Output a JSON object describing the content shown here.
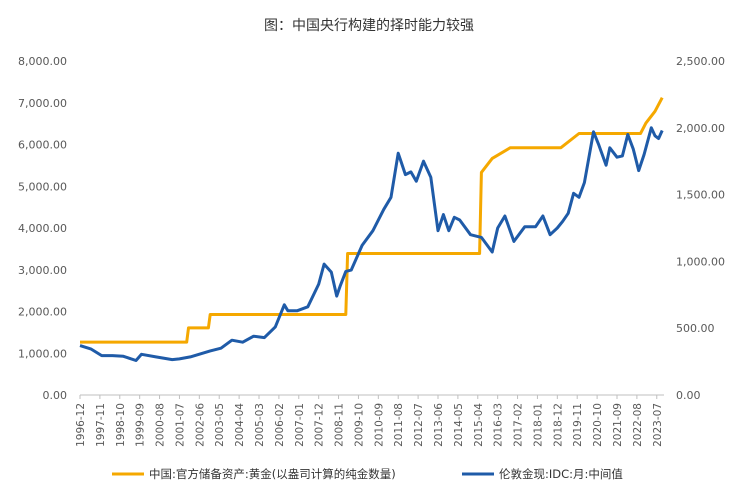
{
  "chart_data": {
    "type": "line",
    "title": "图：中国央行构建的择时能力较强",
    "x_labels": [
      "1996-12",
      "1997-11",
      "1998-10",
      "1999-09",
      "2000-08",
      "2001-07",
      "2002-06",
      "2003-05",
      "2004-04",
      "2005-03",
      "2006-02",
      "2007-01",
      "2007-12",
      "2008-11",
      "2009-10",
      "2010-09",
      "2011-08",
      "2012-07",
      "2013-06",
      "2014-05",
      "2015-04",
      "2016-03",
      "2017-02",
      "2018-01",
      "2018-12",
      "2019-11",
      "2020-10",
      "2021-09",
      "2022-08",
      "2023-07"
    ],
    "left_axis": {
      "ylim": [
        0,
        8000
      ],
      "ticks": [
        "0.00",
        "1,000.00",
        "2,000.00",
        "3,000.00",
        "4,000.00",
        "5,000.00",
        "6,000.00",
        "7,000.00",
        "8,000.00"
      ]
    },
    "right_axis": {
      "ylim": [
        0,
        2500
      ],
      "ticks": [
        "0.00",
        "500.00",
        "1,000.00",
        "1,500.00",
        "2,000.00",
        "2,500.00"
      ]
    },
    "grid": false,
    "legend_position": "bottom",
    "series": [
      {
        "name": "中国:官方储备资产:黄金(以盎司计算的纯金数量)",
        "axis": "left",
        "color": "#F5A800",
        "points": [
          [
            "1996-12",
            1267
          ],
          [
            "2001-11",
            1267
          ],
          [
            "2001-12",
            1608
          ],
          [
            "2002-11",
            1608
          ],
          [
            "2002-12",
            1929
          ],
          [
            "2009-03",
            1929
          ],
          [
            "2009-04",
            3389
          ],
          [
            "2015-05",
            3389
          ],
          [
            "2015-06",
            5332
          ],
          [
            "2015-12",
            5666
          ],
          [
            "2016-10",
            5924
          ],
          [
            "2019-02",
            5924
          ],
          [
            "2019-12",
            6264
          ],
          [
            "2022-10",
            6264
          ],
          [
            "2023-01",
            6512
          ],
          [
            "2023-06",
            6795
          ],
          [
            "2023-10",
            7120
          ]
        ]
      },
      {
        "name": "伦敦金现:IDC:月:中间值",
        "axis": "right",
        "color": "#1F5BA8",
        "points": [
          [
            "1996-12",
            370
          ],
          [
            "1997-06",
            345
          ],
          [
            "1997-12",
            295
          ],
          [
            "1998-06",
            295
          ],
          [
            "1998-12",
            290
          ],
          [
            "1999-07",
            258
          ],
          [
            "1999-10",
            305
          ],
          [
            "2000-06",
            285
          ],
          [
            "2001-03",
            265
          ],
          [
            "2001-07",
            270
          ],
          [
            "2002-01",
            285
          ],
          [
            "2002-12",
            330
          ],
          [
            "2003-06",
            350
          ],
          [
            "2003-12",
            410
          ],
          [
            "2004-06",
            395
          ],
          [
            "2004-12",
            440
          ],
          [
            "2005-06",
            430
          ],
          [
            "2005-12",
            510
          ],
          [
            "2006-05",
            675
          ],
          [
            "2006-07",
            630
          ],
          [
            "2006-12",
            630
          ],
          [
            "2007-06",
            660
          ],
          [
            "2007-12",
            830
          ],
          [
            "2008-03",
            980
          ],
          [
            "2008-07",
            920
          ],
          [
            "2008-10",
            740
          ],
          [
            "2008-12",
            820
          ],
          [
            "2009-03",
            925
          ],
          [
            "2009-06",
            935
          ],
          [
            "2009-12",
            1120
          ],
          [
            "2010-06",
            1230
          ],
          [
            "2010-12",
            1390
          ],
          [
            "2011-04",
            1480
          ],
          [
            "2011-08",
            1810
          ],
          [
            "2011-09",
            1770
          ],
          [
            "2011-12",
            1650
          ],
          [
            "2012-03",
            1670
          ],
          [
            "2012-06",
            1600
          ],
          [
            "2012-10",
            1750
          ],
          [
            "2013-02",
            1630
          ],
          [
            "2013-06",
            1230
          ],
          [
            "2013-09",
            1350
          ],
          [
            "2013-12",
            1230
          ],
          [
            "2014-03",
            1330
          ],
          [
            "2014-06",
            1310
          ],
          [
            "2014-12",
            1200
          ],
          [
            "2015-06",
            1180
          ],
          [
            "2015-12",
            1070
          ],
          [
            "2016-03",
            1250
          ],
          [
            "2016-07",
            1340
          ],
          [
            "2016-12",
            1150
          ],
          [
            "2017-06",
            1260
          ],
          [
            "2017-12",
            1260
          ],
          [
            "2018-04",
            1340
          ],
          [
            "2018-08",
            1200
          ],
          [
            "2018-12",
            1250
          ],
          [
            "2019-03",
            1300
          ],
          [
            "2019-06",
            1360
          ],
          [
            "2019-09",
            1510
          ],
          [
            "2019-12",
            1480
          ],
          [
            "2020-03",
            1590
          ],
          [
            "2020-08",
            1970
          ],
          [
            "2020-11",
            1870
          ],
          [
            "2021-03",
            1720
          ],
          [
            "2021-05",
            1850
          ],
          [
            "2021-09",
            1780
          ],
          [
            "2021-12",
            1790
          ],
          [
            "2022-03",
            1950
          ],
          [
            "2022-06",
            1840
          ],
          [
            "2022-09",
            1680
          ],
          [
            "2022-12",
            1800
          ],
          [
            "2023-04",
            2000
          ],
          [
            "2023-06",
            1940
          ],
          [
            "2023-08",
            1920
          ],
          [
            "2023-10",
            1980
          ]
        ]
      }
    ]
  }
}
